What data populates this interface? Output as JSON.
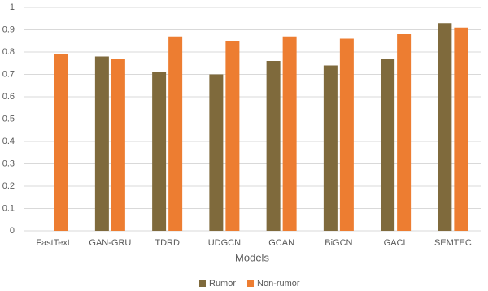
{
  "chart_data": {
    "type": "bar",
    "x_label": "Models",
    "categories": [
      "FastText",
      "GAN-GRU",
      "TDRD",
      "UDGCN",
      "GCAN",
      "BiGCN",
      "GACL",
      "SEMTEC"
    ],
    "series": [
      {
        "name": "Rumor",
        "color": "#7f6a3c",
        "values": [
          null,
          0.78,
          0.71,
          0.7,
          0.76,
          0.74,
          0.77,
          0.93
        ]
      },
      {
        "name": "Non-rumor",
        "color": "#ed7d31",
        "values": [
          0.79,
          0.77,
          0.87,
          0.85,
          0.87,
          0.86,
          0.88,
          0.91
        ]
      }
    ],
    "ylim": [
      0,
      1
    ],
    "yticks": [
      0,
      0.1,
      0.2,
      0.3,
      0.4,
      0.5,
      0.6,
      0.7,
      0.8,
      0.9,
      1
    ],
    "grid": true,
    "legend": "bottom"
  }
}
